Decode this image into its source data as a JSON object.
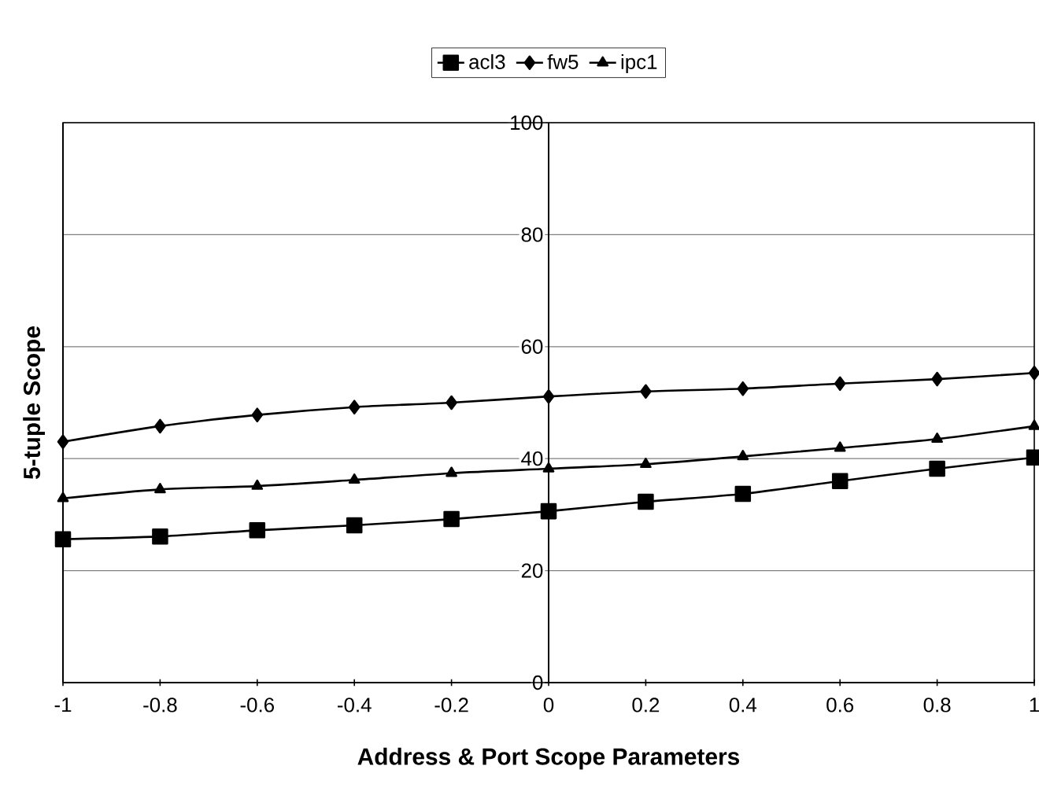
{
  "chart_data": {
    "type": "line",
    "xlabel": "Address & Port Scope Parameters",
    "ylabel": "5-tuple Scope",
    "x": [
      -1,
      -0.8,
      -0.6,
      -0.4,
      -0.2,
      0,
      0.2,
      0.4,
      0.6,
      0.8,
      1
    ],
    "series": [
      {
        "name": "acl3",
        "color": "#000000",
        "marker": "square",
        "values": [
          25.6,
          26.1,
          27.2,
          28.1,
          29.2,
          30.6,
          32.3,
          33.7,
          36.0,
          38.2,
          40.2
        ]
      },
      {
        "name": "fw5",
        "color": "#000000",
        "marker": "diamond",
        "values": [
          43.0,
          45.8,
          47.8,
          49.2,
          50.0,
          51.1,
          52.0,
          52.5,
          53.4,
          54.2,
          55.3
        ]
      },
      {
        "name": "ipc1",
        "color": "#000000",
        "marker": "triangle",
        "values": [
          32.9,
          34.5,
          35.1,
          36.2,
          37.4,
          38.2,
          39.0,
          40.4,
          41.9,
          43.5,
          45.8
        ]
      }
    ],
    "xlim": [
      -1,
      1
    ],
    "ylim": [
      0,
      100
    ],
    "xticks": [
      -1,
      -0.8,
      -0.6,
      -0.4,
      -0.2,
      0,
      0.2,
      0.4,
      0.6,
      0.8,
      1
    ],
    "yticks": [
      0,
      20,
      40,
      60,
      80,
      100
    ],
    "grid": "y",
    "legend": "top",
    "line_style": "solid"
  }
}
